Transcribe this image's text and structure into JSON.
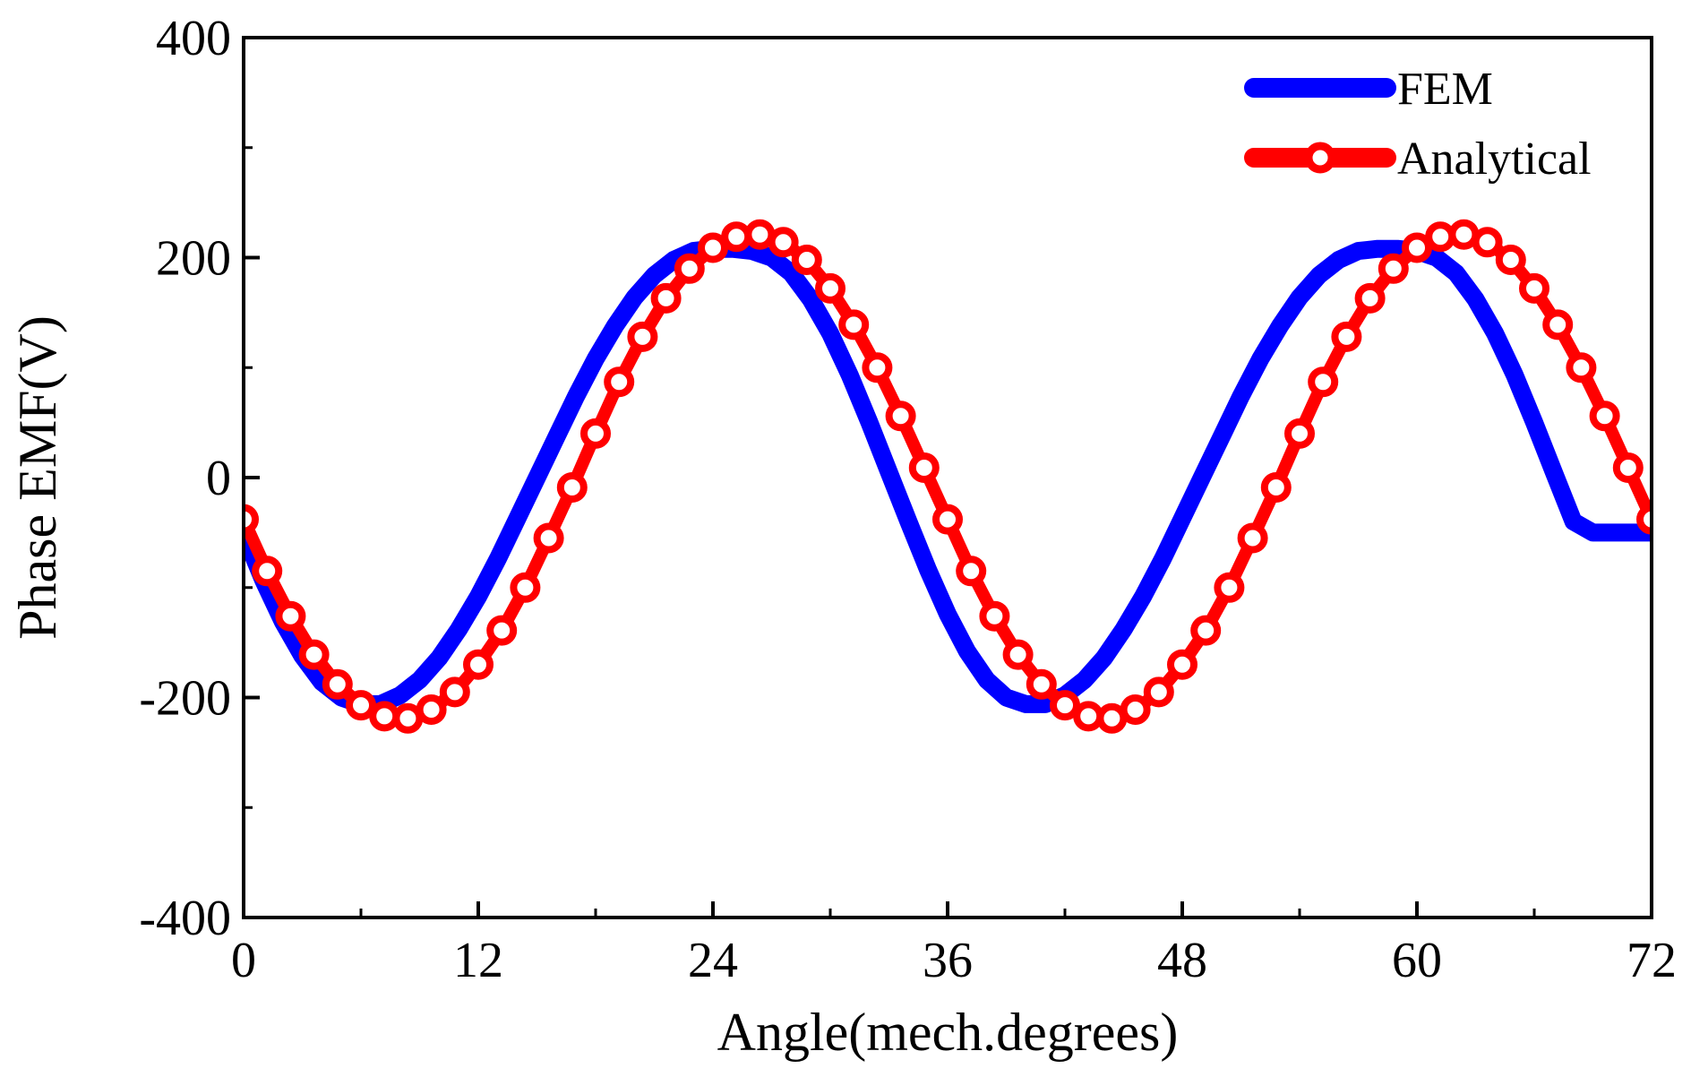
{
  "chart_data": {
    "type": "line",
    "title": "",
    "xlabel": "Angle(mech.degrees)",
    "ylabel": "Phase EMF(V)",
    "xlim": [
      0,
      72
    ],
    "ylim": [
      -400,
      400
    ],
    "x_ticks": [
      0,
      12,
      24,
      36,
      48,
      60,
      72
    ],
    "x_tick_labels": [
      "0",
      "12",
      "24",
      "36",
      "48",
      "60",
      "72"
    ],
    "y_ticks": [
      -400,
      -200,
      0,
      200,
      400
    ],
    "y_tick_labels": [
      "-400",
      "-200",
      "0",
      "200",
      "400"
    ],
    "y_minor_ticks": [
      -300,
      -100,
      100,
      300
    ],
    "x_minor_ticks": [
      6,
      18,
      30,
      42,
      54,
      66
    ],
    "legend_position": "top-right",
    "series": [
      {
        "name": "FEM",
        "color": "#0000ff",
        "marker": "none",
        "x": [
          0,
          1,
          2,
          3,
          4,
          5,
          6,
          7,
          8,
          9,
          10,
          11,
          12,
          13,
          14,
          15,
          16,
          17,
          18,
          19,
          20,
          21,
          22,
          23,
          24,
          25,
          26,
          27,
          28,
          29,
          30,
          31,
          32,
          33,
          34,
          35,
          36,
          37,
          38,
          39,
          40,
          41,
          42,
          43,
          44,
          45,
          46,
          47,
          48,
          49,
          50,
          51,
          52,
          53,
          54,
          55,
          56,
          57,
          58,
          59,
          60,
          61,
          62,
          63,
          64,
          65,
          66,
          67,
          68,
          69,
          70,
          71,
          72
        ],
        "values": [
          -50,
          -93,
          -131,
          -162,
          -186,
          -200,
          -206,
          -206,
          -198,
          -184,
          -164,
          -138,
          -108,
          -74,
          -37,
          0,
          37,
          74,
          108,
          138,
          164,
          184,
          198,
          206,
          208,
          208,
          206,
          200,
          186,
          162,
          131,
          93,
          50,
          5,
          -40,
          -84,
          -124,
          -158,
          -184,
          -200,
          -206,
          -206,
          -198,
          -184,
          -164,
          -138,
          -108,
          -74,
          -37,
          0,
          37,
          74,
          108,
          138,
          164,
          184,
          198,
          206,
          208,
          208,
          206,
          200,
          186,
          162,
          131,
          93,
          50,
          5,
          -40,
          -50,
          -50,
          -50,
          -50
        ]
      },
      {
        "name": "Analytical",
        "color": "#ff0000",
        "marker": "circle",
        "x": [
          0,
          1.2,
          2.4,
          3.6,
          4.8,
          6,
          7.2,
          8.4,
          9.6,
          10.8,
          12,
          13.2,
          14.4,
          15.6,
          16.8,
          18,
          19.2,
          20.4,
          21.6,
          22.8,
          24,
          25.2,
          26.4,
          27.6,
          28.8,
          30,
          31.2,
          32.4,
          33.6,
          34.8,
          36,
          37.2,
          38.4,
          39.6,
          40.8,
          42,
          43.2,
          44.4,
          45.6,
          46.8,
          48,
          49.2,
          50.4,
          51.6,
          52.8,
          54,
          55.2,
          56.4,
          57.6,
          58.8,
          60,
          61.2,
          62.4,
          63.6,
          64.8,
          66,
          67.2,
          68.4,
          69.6,
          70.8,
          72
        ],
        "values": [
          -38,
          -85,
          -126,
          -161,
          -188,
          -207,
          -217,
          -219,
          -211,
          -195,
          -170,
          -139,
          -100,
          -55,
          -9,
          40,
          87,
          128,
          163,
          190,
          209,
          219,
          221,
          214,
          198,
          172,
          139,
          100,
          56,
          9,
          -38,
          -85,
          -126,
          -161,
          -188,
          -207,
          -217,
          -219,
          -211,
          -195,
          -170,
          -139,
          -100,
          -55,
          -9,
          40,
          87,
          128,
          163,
          190,
          209,
          219,
          221,
          214,
          198,
          172,
          139,
          100,
          56,
          9,
          -38
        ]
      }
    ]
  }
}
